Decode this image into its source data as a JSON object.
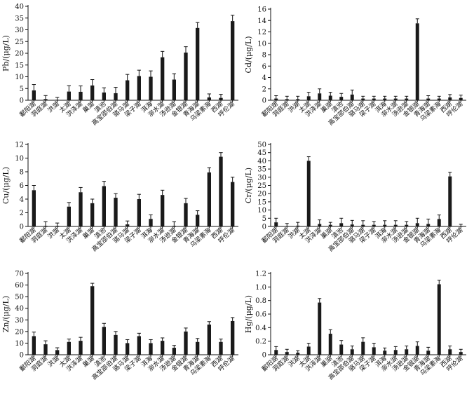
{
  "chart_data": [
    {
      "type": "bar",
      "ylabel": "Pb/(μg/L)",
      "ylim": [
        0,
        40
      ],
      "yticks": [
        0,
        5,
        10,
        15,
        20,
        25,
        30,
        35,
        40
      ],
      "categories": [
        "鄱阳湖",
        "洞庭湖",
        "洪湖",
        "太湖",
        "洪泽湖",
        "巢湖",
        "滇池",
        "高宝邵伯湖",
        "骆马湖",
        "梁子湖",
        "洱海",
        "泖水湖",
        "汤逊湖",
        "金银湖",
        "青海湖",
        "乌梁素海",
        "西湖",
        "呼伦湖"
      ],
      "values": [
        4.2,
        0.5,
        0.2,
        3.7,
        3.6,
        6.3,
        3.3,
        3.0,
        8.5,
        10.3,
        10.0,
        18.3,
        8.8,
        20.3,
        30.8,
        1.2,
        1.0,
        33.7
      ],
      "errors": [
        2.5,
        1.5,
        1.0,
        2.5,
        2.5,
        2.5,
        2.0,
        2.5,
        2.5,
        2.5,
        2.5,
        2.5,
        2.5,
        2.5,
        2.3,
        1.5,
        1.5,
        2.5
      ],
      "grid": false,
      "color": "#1a1a1a"
    },
    {
      "type": "bar",
      "ylabel": "Cd/(μg/L)",
      "ylim": [
        0,
        16
      ],
      "yticks": [
        0,
        2,
        4,
        6,
        8,
        10,
        12,
        14,
        16
      ],
      "categories": [
        "鄱阳湖",
        "洞庭湖",
        "洪湖",
        "太湖",
        "洪泽湖",
        "巢湖",
        "滇池",
        "高宝邵伯湖",
        "骆马湖",
        "梁子湖",
        "洱海",
        "泖水湖",
        "汤逊湖",
        "金银湖",
        "青海湖",
        "乌梁素海",
        "西湖",
        "呼伦湖"
      ],
      "values": [
        0.3,
        0.2,
        0.2,
        0.7,
        1.2,
        0.8,
        0.6,
        1.0,
        0.3,
        0.3,
        0.3,
        0.3,
        0.3,
        13.5,
        0.3,
        0.3,
        0.5,
        0.4
      ],
      "errors": [
        0.5,
        0.5,
        0.5,
        0.7,
        0.8,
        0.6,
        0.6,
        0.8,
        0.4,
        0.4,
        0.4,
        0.4,
        0.4,
        0.8,
        0.5,
        0.4,
        0.5,
        0.5
      ],
      "grid": false,
      "color": "#1a1a1a"
    },
    {
      "type": "bar",
      "ylabel": "Cu/(μg/L)",
      "ylim": [
        0,
        12
      ],
      "yticks": [
        0,
        2,
        4,
        6,
        8,
        10,
        12
      ],
      "categories": [
        "鄱阳湖",
        "洞庭湖",
        "洪湖",
        "太湖",
        "洪泽湖",
        "巢湖",
        "滇池",
        "高宝邵伯湖",
        "骆马湖",
        "梁子湖",
        "洱海",
        "泖水湖",
        "汤逊湖",
        "金银湖",
        "青海湖",
        "乌梁素海",
        "西湖",
        "呼伦湖"
      ],
      "values": [
        5.3,
        0.1,
        0.1,
        2.9,
        5.0,
        3.4,
        5.9,
        4.2,
        0.3,
        4.0,
        1.1,
        4.6,
        0.1,
        3.4,
        1.7,
        7.9,
        10.2,
        6.5
      ],
      "errors": [
        0.7,
        0.6,
        0.4,
        0.6,
        0.7,
        0.6,
        0.7,
        0.6,
        0.5,
        0.7,
        0.6,
        0.7,
        0.6,
        0.7,
        0.6,
        0.7,
        0.6,
        0.7
      ],
      "grid": false,
      "color": "#1a1a1a"
    },
    {
      "type": "bar",
      "ylabel": "Cr/(μg/L)",
      "ylim": [
        0,
        50
      ],
      "yticks": [
        0,
        5,
        10,
        15,
        20,
        25,
        30,
        35,
        40,
        45,
        50
      ],
      "categories": [
        "鄱阳湖",
        "洞庭湖",
        "洪湖",
        "太湖",
        "洪泽湖",
        "巢湖",
        "滇池",
        "高宝邵伯湖",
        "骆马湖",
        "梁子湖",
        "洱海",
        "泖水湖",
        "汤逊湖",
        "金银湖",
        "青海湖",
        "乌梁素海",
        "西湖",
        "呼伦湖"
      ],
      "values": [
        2.5,
        0.3,
        0.5,
        40.0,
        1.5,
        1.0,
        2.0,
        1.2,
        1.0,
        1.0,
        1.0,
        1.0,
        1.0,
        2.0,
        1.5,
        4.5,
        30.5,
        0.3
      ],
      "errors": [
        2.5,
        1.5,
        2.0,
        2.5,
        2.5,
        1.5,
        3.0,
        2.5,
        2.5,
        2.0,
        2.5,
        2.5,
        2.0,
        3.0,
        3.0,
        2.5,
        2.5,
        1.0
      ],
      "grid": false,
      "color": "#1a1a1a"
    },
    {
      "type": "bar",
      "ylabel": "Zn/(μg/L)",
      "ylim": [
        0,
        70
      ],
      "yticks": [
        0,
        10,
        20,
        30,
        40,
        50,
        60,
        70
      ],
      "categories": [
        "鄱阳湖",
        "洞庭湖",
        "洪湖",
        "太湖",
        "洪泽湖",
        "巢湖",
        "滇池",
        "高宝邵伯湖",
        "骆马湖",
        "梁子湖",
        "洱海",
        "泖水湖",
        "汤逊湖",
        "金银湖",
        "青海湖",
        "乌梁素海",
        "西湖",
        "呼伦湖"
      ],
      "values": [
        16,
        9,
        4,
        11,
        12,
        59,
        24,
        17,
        10,
        16,
        10,
        12,
        6,
        20,
        11,
        26,
        11,
        29
      ],
      "errors": [
        3.5,
        3.0,
        2.0,
        2.5,
        3.0,
        2.5,
        3.0,
        3.0,
        3.0,
        2.5,
        3.0,
        2.5,
        2.0,
        3.0,
        3.0,
        2.5,
        2.5,
        3.0
      ],
      "grid": false,
      "color": "#1a1a1a"
    },
    {
      "type": "bar",
      "ylabel": "Hg/(μg/L)",
      "ylim": [
        0,
        1.2
      ],
      "yticks": [
        0,
        0.2,
        0.4,
        0.6,
        0.8,
        1.0,
        1.2
      ],
      "categories": [
        "鄱阳湖",
        "洞庭湖",
        "洪湖",
        "太湖",
        "洪泽湖",
        "巢湖",
        "滇池",
        "高宝邵伯湖",
        "骆马湖",
        "梁子湖",
        "洱海",
        "泖水湖",
        "汤逊湖",
        "金银湖",
        "青海湖",
        "乌梁素海",
        "西湖",
        "呼伦湖"
      ],
      "values": [
        0.07,
        0.04,
        0.03,
        0.12,
        0.77,
        0.31,
        0.15,
        0.08,
        0.19,
        0.11,
        0.06,
        0.07,
        0.08,
        0.13,
        0.06,
        1.04,
        0.08,
        0.04
      ],
      "errors": [
        0.05,
        0.04,
        0.03,
        0.05,
        0.06,
        0.06,
        0.06,
        0.05,
        0.06,
        0.06,
        0.04,
        0.05,
        0.05,
        0.06,
        0.05,
        0.06,
        0.05,
        0.04
      ],
      "grid": false,
      "color": "#1a1a1a"
    }
  ]
}
